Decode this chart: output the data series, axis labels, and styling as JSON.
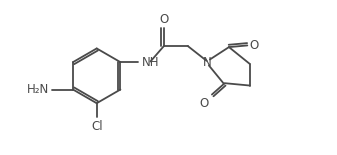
{
  "bg_color": "#ffffff",
  "line_color": "#4a4a4a",
  "line_width": 1.3,
  "font_size": 8.5,
  "fig_width": 3.37,
  "fig_height": 1.55,
  "dpi": 100,
  "xlim": [
    0,
    10
  ],
  "ylim": [
    0,
    4.6
  ]
}
